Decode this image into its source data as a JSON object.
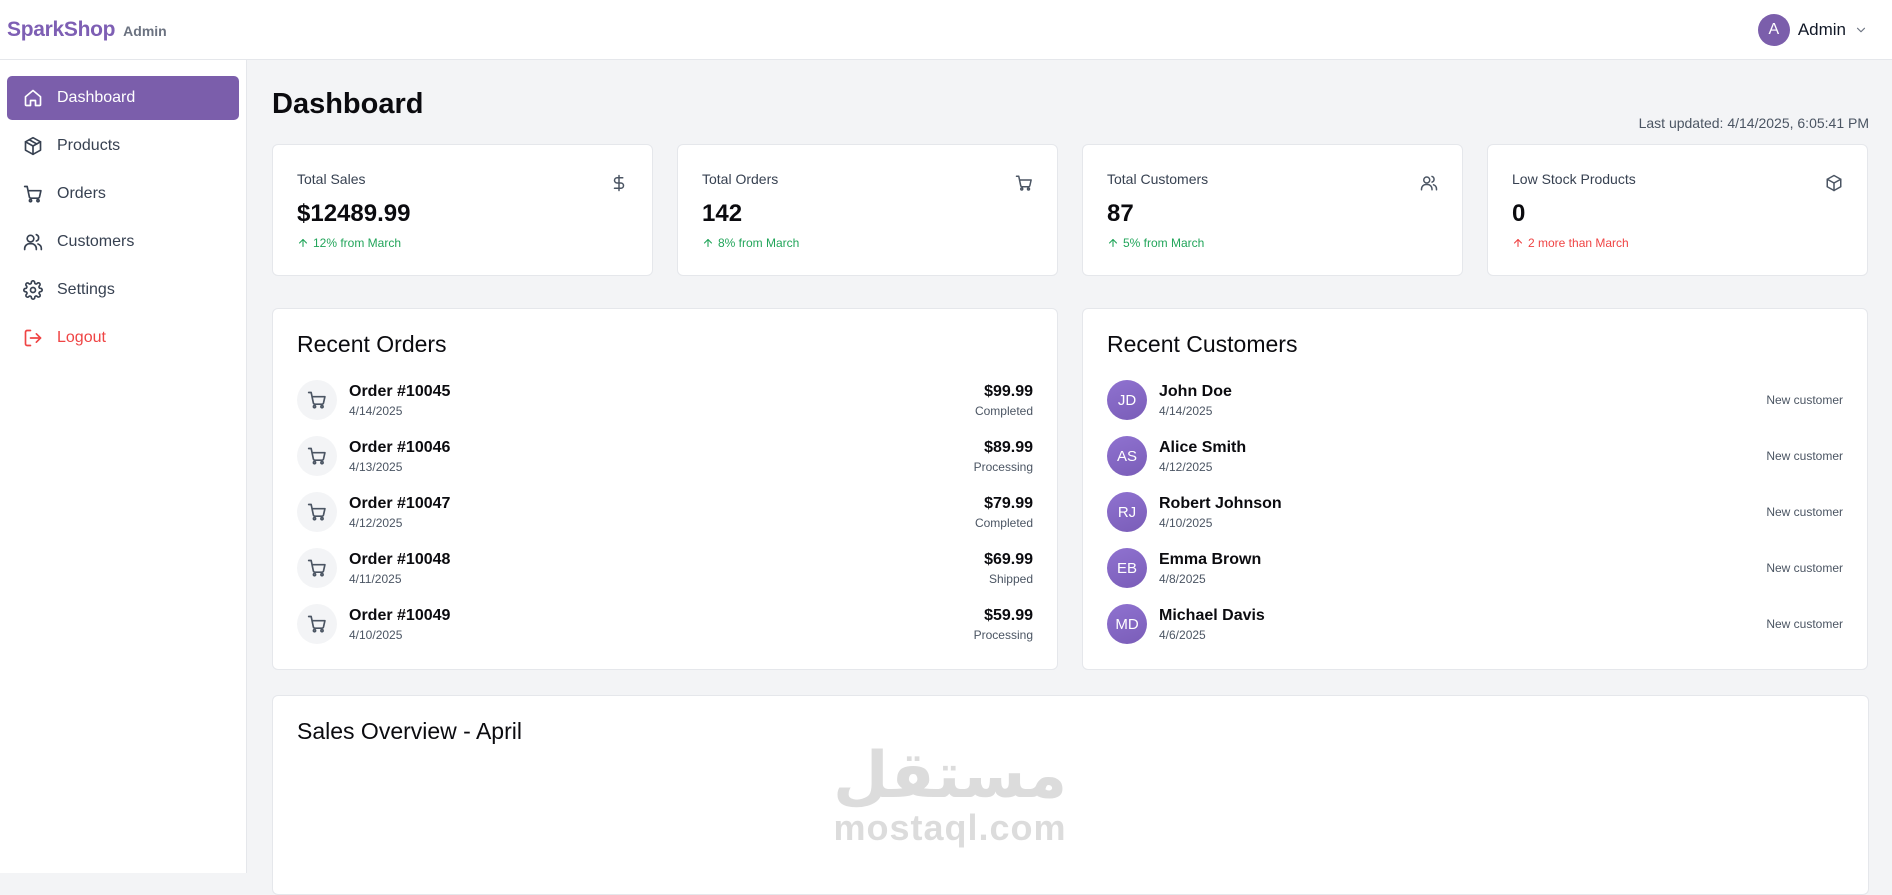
{
  "header": {
    "brand": "SparkShop",
    "brand_sub": "Admin",
    "user_initial": "A",
    "user_name": "Admin"
  },
  "sidebar": {
    "items": [
      {
        "label": "Dashboard",
        "icon": "home-icon",
        "active": true
      },
      {
        "label": "Products",
        "icon": "package-icon"
      },
      {
        "label": "Orders",
        "icon": "cart-icon"
      },
      {
        "label": "Customers",
        "icon": "users-icon"
      },
      {
        "label": "Settings",
        "icon": "gear-icon"
      },
      {
        "label": "Logout",
        "icon": "logout-icon"
      }
    ]
  },
  "page": {
    "title": "Dashboard",
    "last_updated": "Last updated: 4/14/2025, 6:05:41 PM"
  },
  "stats": [
    {
      "label": "Total Sales",
      "value": "$12489.99",
      "change": "12% from March",
      "icon": "dollar-icon",
      "trend": "up-green"
    },
    {
      "label": "Total Orders",
      "value": "142",
      "change": "8% from March",
      "icon": "cart-icon",
      "trend": "up-green"
    },
    {
      "label": "Total Customers",
      "value": "87",
      "change": "5% from March",
      "icon": "users-icon",
      "trend": "up-green"
    },
    {
      "label": "Low Stock Products",
      "value": "0",
      "change": "2 more than March",
      "icon": "package-icon",
      "trend": "up-red"
    }
  ],
  "recent_orders": {
    "title": "Recent Orders",
    "items": [
      {
        "name": "Order #10045",
        "date": "4/14/2025",
        "amount": "$99.99",
        "status": "Completed"
      },
      {
        "name": "Order #10046",
        "date": "4/13/2025",
        "amount": "$89.99",
        "status": "Processing"
      },
      {
        "name": "Order #10047",
        "date": "4/12/2025",
        "amount": "$79.99",
        "status": "Completed"
      },
      {
        "name": "Order #10048",
        "date": "4/11/2025",
        "amount": "$69.99",
        "status": "Shipped"
      },
      {
        "name": "Order #10049",
        "date": "4/10/2025",
        "amount": "$59.99",
        "status": "Processing"
      }
    ]
  },
  "recent_customers": {
    "title": "Recent Customers",
    "items": [
      {
        "initials": "JD",
        "name": "John Doe",
        "date": "4/14/2025",
        "note": "New customer"
      },
      {
        "initials": "AS",
        "name": "Alice Smith",
        "date": "4/12/2025",
        "note": "New customer"
      },
      {
        "initials": "RJ",
        "name": "Robert Johnson",
        "date": "4/10/2025",
        "note": "New customer"
      },
      {
        "initials": "EB",
        "name": "Emma Brown",
        "date": "4/8/2025",
        "note": "New customer"
      },
      {
        "initials": "MD",
        "name": "Michael Davis",
        "date": "4/6/2025",
        "note": "New customer"
      }
    ]
  },
  "sales_overview": {
    "title": "Sales Overview - April"
  },
  "watermark": {
    "arabic": "مستقل",
    "latin": "mostaql.com"
  },
  "colors": {
    "accent": "#7b5eab",
    "brand": "#7e5fb4",
    "positive": "#22a55a",
    "negative": "#ef4444"
  }
}
